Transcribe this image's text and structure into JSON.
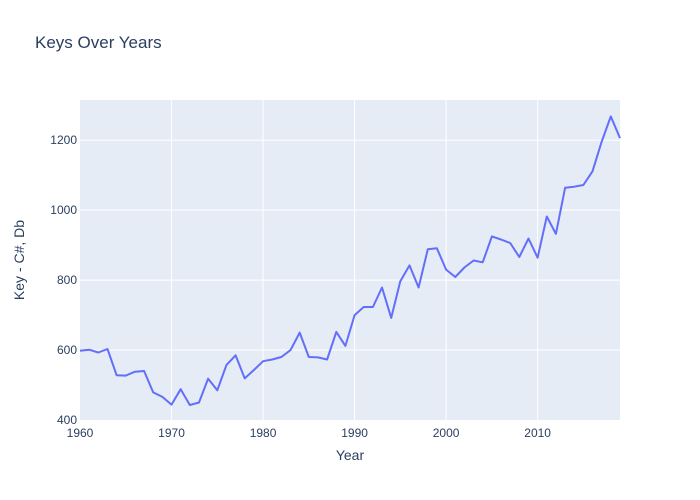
{
  "chart_data": {
    "type": "line",
    "title": "Keys Over Years",
    "xlabel": "Year",
    "ylabel": "Key - C#, Db",
    "xlim": [
      1960,
      2019
    ],
    "ylim": [
      400,
      1315
    ],
    "xticks": [
      1960,
      1970,
      1980,
      1990,
      2000,
      2010
    ],
    "yticks": [
      400,
      600,
      800,
      1000,
      1200
    ],
    "grid": true,
    "series": [
      {
        "name": "Key - C#, Db",
        "color": "#636efa",
        "x": [
          1960,
          1961,
          1962,
          1963,
          1964,
          1965,
          1966,
          1967,
          1968,
          1969,
          1970,
          1971,
          1972,
          1973,
          1974,
          1975,
          1976,
          1977,
          1978,
          1979,
          1980,
          1981,
          1982,
          1983,
          1984,
          1985,
          1986,
          1987,
          1988,
          1989,
          1990,
          1991,
          1992,
          1993,
          1994,
          1995,
          1996,
          1997,
          1998,
          1999,
          2000,
          2001,
          2002,
          2003,
          2004,
          2005,
          2006,
          2007,
          2008,
          2009,
          2010,
          2011,
          2012,
          2013,
          2014,
          2015,
          2016,
          2017,
          2018,
          2019
        ],
        "values": [
          598,
          601,
          593,
          603,
          528,
          527,
          538,
          540,
          479,
          466,
          444,
          488,
          443,
          450,
          518,
          485,
          557,
          585,
          519,
          543,
          568,
          573,
          580,
          600,
          650,
          580,
          579,
          573,
          652,
          612,
          700,
          723,
          723,
          779,
          692,
          797,
          842,
          779,
          888,
          891,
          830,
          809,
          836,
          856,
          851,
          925,
          916,
          906,
          866,
          919,
          864,
          982,
          932,
          1064,
          1067,
          1072,
          1111,
          1196,
          1268,
          1206
        ]
      }
    ]
  },
  "colors": {
    "plot_bg": "#e5ecf6",
    "grid": "#ffffff",
    "line": "#636efa",
    "text": "#2a3f5f"
  }
}
